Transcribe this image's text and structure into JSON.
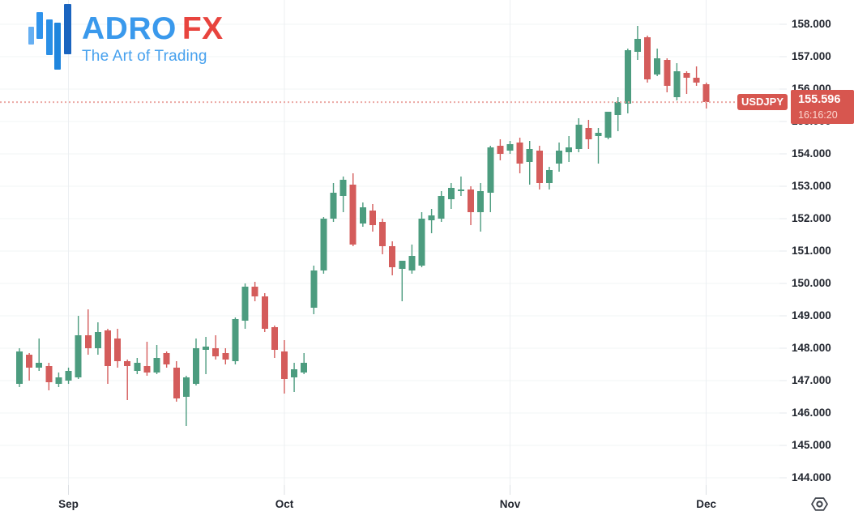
{
  "logo": {
    "name_primary": "ADRO",
    "name_accent": "FX",
    "tagline": "The Art of Trading",
    "colors": {
      "primary_text": "#3a99ec",
      "accent_text": "#e8443e",
      "tagline_text": "#47a1ee",
      "icon_bars": [
        "#66aff2",
        "#2f93ec",
        "#2a8fe6",
        "#1f85dd",
        "#1a64bf"
      ]
    }
  },
  "price_scale": {
    "labels": [
      "158.000",
      "157.000",
      "156.000",
      "155.000",
      "154.000",
      "153.000",
      "152.000",
      "151.000",
      "150.000",
      "149.000",
      "148.000",
      "147.000",
      "146.000",
      "145.000",
      "144.000"
    ],
    "values": [
      158,
      157,
      156,
      155,
      154,
      153,
      152,
      151,
      150,
      149,
      148,
      147,
      146,
      145,
      144
    ]
  },
  "time_scale": {
    "months": [
      {
        "label": "Sep",
        "candle_index": 5
      },
      {
        "label": "Oct",
        "candle_index": 27
      },
      {
        "label": "Nov",
        "candle_index": 50
      },
      {
        "label": "Dec",
        "candle_index": 70
      }
    ]
  },
  "last_price_label": {
    "symbol": "USDJPY",
    "price": "155.596",
    "countdown": "16:16:20",
    "background": "#d7564f",
    "price_text_color": "#ffffff",
    "countdown_text_color": "#fcd8d0"
  },
  "toolbar": {
    "settings_icon_color": "#3f434c"
  },
  "chart_data": {
    "type": "candlestick",
    "symbol": "USDJPY",
    "x_axis_labels": [
      "Sep",
      "Oct",
      "Nov",
      "Dec"
    ],
    "y_axis_ticks": [
      158,
      157,
      156,
      155,
      154,
      153,
      152,
      151,
      150,
      149,
      148,
      147,
      146,
      145,
      144
    ],
    "y_range": [
      143.8,
      158.35
    ],
    "grid": true,
    "legend_position": "none",
    "last_price": 155.596,
    "last_update_countdown": "16:16:20",
    "colors": {
      "up": "#4c9c7f",
      "down": "#d45c5b",
      "last_price_line": "#eba7a3",
      "grid_h": "#f1f4f6",
      "grid_v": "#eceff2",
      "tick": "#dcdfe3"
    },
    "ohlc_format": [
      "open",
      "high",
      "low",
      "close"
    ],
    "candles": [
      [
        146.9,
        148.0,
        146.8,
        147.9
      ],
      [
        147.8,
        147.85,
        147.0,
        147.4
      ],
      [
        147.4,
        148.3,
        147.3,
        147.55
      ],
      [
        147.45,
        147.55,
        146.7,
        146.95
      ],
      [
        146.9,
        147.25,
        146.8,
        147.1
      ],
      [
        147.0,
        147.4,
        146.9,
        147.3
      ],
      [
        147.1,
        149.0,
        147.05,
        148.4
      ],
      [
        148.4,
        149.2,
        147.8,
        148.0
      ],
      [
        148.0,
        148.8,
        147.8,
        148.5
      ],
      [
        148.55,
        148.6,
        146.9,
        147.45
      ],
      [
        148.3,
        148.6,
        147.4,
        147.6
      ],
      [
        147.6,
        147.65,
        146.4,
        147.45
      ],
      [
        147.3,
        147.7,
        147.2,
        147.55
      ],
      [
        147.45,
        148.2,
        147.15,
        147.25
      ],
      [
        147.25,
        148.1,
        147.2,
        147.7
      ],
      [
        147.85,
        147.9,
        147.4,
        147.5
      ],
      [
        147.4,
        147.6,
        146.35,
        146.45
      ],
      [
        146.5,
        147.15,
        145.6,
        147.1
      ],
      [
        146.9,
        148.3,
        146.85,
        148.0
      ],
      [
        147.95,
        148.35,
        147.2,
        148.05
      ],
      [
        148.0,
        148.4,
        147.65,
        147.75
      ],
      [
        147.85,
        148.0,
        147.5,
        147.65
      ],
      [
        147.6,
        148.95,
        147.5,
        148.9
      ],
      [
        148.85,
        150.0,
        148.6,
        149.9
      ],
      [
        149.9,
        150.05,
        149.45,
        149.6
      ],
      [
        149.6,
        149.7,
        148.5,
        148.6
      ],
      [
        148.65,
        148.7,
        147.7,
        147.95
      ],
      [
        147.9,
        148.25,
        146.6,
        147.05
      ],
      [
        147.1,
        147.55,
        146.65,
        147.35
      ],
      [
        147.25,
        147.85,
        147.2,
        147.55
      ],
      [
        149.25,
        150.55,
        149.05,
        150.4
      ],
      [
        150.4,
        152.05,
        150.3,
        152.0
      ],
      [
        152.0,
        153.1,
        151.9,
        152.8
      ],
      [
        152.7,
        153.3,
        152.2,
        153.2
      ],
      [
        153.05,
        153.4,
        151.15,
        151.2
      ],
      [
        151.85,
        152.5,
        151.75,
        152.35
      ],
      [
        152.25,
        152.45,
        151.6,
        151.8
      ],
      [
        151.9,
        152.0,
        150.9,
        151.15
      ],
      [
        151.15,
        151.3,
        150.25,
        150.5
      ],
      [
        150.45,
        150.7,
        149.45,
        150.7
      ],
      [
        150.4,
        151.2,
        150.3,
        150.85
      ],
      [
        150.55,
        152.2,
        150.5,
        152.0
      ],
      [
        151.95,
        152.3,
        151.55,
        152.1
      ],
      [
        152.0,
        152.85,
        151.9,
        152.7
      ],
      [
        152.6,
        153.1,
        152.3,
        152.95
      ],
      [
        152.85,
        153.3,
        152.7,
        152.9
      ],
      [
        152.9,
        153.0,
        151.8,
        152.2
      ],
      [
        152.2,
        153.1,
        151.6,
        152.85
      ],
      [
        152.8,
        154.25,
        152.2,
        154.2
      ],
      [
        154.25,
        154.45,
        153.8,
        154.0
      ],
      [
        154.1,
        154.4,
        154.0,
        154.3
      ],
      [
        154.35,
        154.5,
        153.4,
        153.7
      ],
      [
        153.75,
        154.4,
        153.05,
        154.15
      ],
      [
        154.1,
        154.25,
        152.9,
        153.1
      ],
      [
        153.1,
        153.6,
        152.9,
        153.5
      ],
      [
        153.7,
        154.35,
        153.45,
        154.1
      ],
      [
        154.05,
        154.55,
        153.75,
        154.2
      ],
      [
        154.15,
        155.1,
        154.05,
        154.9
      ],
      [
        154.8,
        155.05,
        154.15,
        154.45
      ],
      [
        154.55,
        154.8,
        153.7,
        154.65
      ],
      [
        154.5,
        155.3,
        154.45,
        155.3
      ],
      [
        155.2,
        155.75,
        154.7,
        155.6
      ],
      [
        155.55,
        157.25,
        155.25,
        157.2
      ],
      [
        157.15,
        157.95,
        156.9,
        157.55
      ],
      [
        157.6,
        157.65,
        156.2,
        156.3
      ],
      [
        156.45,
        157.25,
        156.4,
        156.95
      ],
      [
        156.9,
        156.95,
        155.9,
        156.1
      ],
      [
        155.75,
        156.8,
        155.65,
        156.55
      ],
      [
        156.5,
        156.55,
        155.85,
        156.35
      ],
      [
        156.35,
        156.7,
        156.1,
        156.2
      ],
      [
        156.15,
        156.2,
        155.4,
        155.596
      ]
    ]
  }
}
